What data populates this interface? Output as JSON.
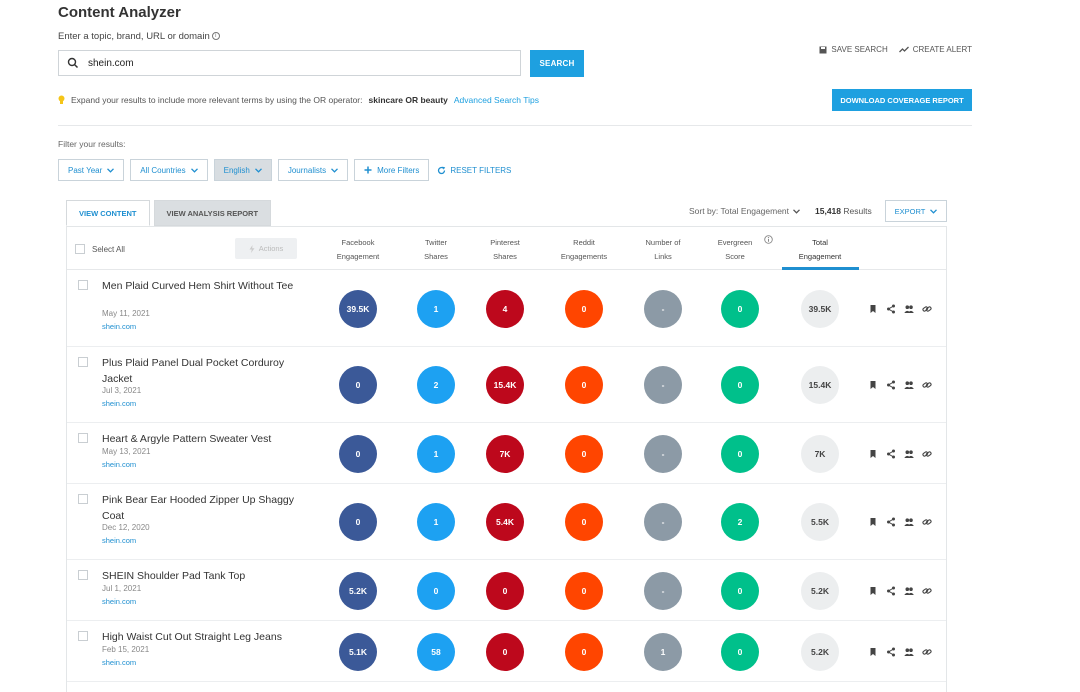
{
  "page_title": "Content Analyzer",
  "search": {
    "label": "Enter a topic, brand, URL or domain",
    "value": "shein.com",
    "button": "SEARCH"
  },
  "top_actions": {
    "save_search": "SAVE SEARCH",
    "create_alert": "CREATE ALERT"
  },
  "tip": {
    "text": "Expand your results to include more relevant terms by using the OR operator:",
    "example": "skincare OR beauty",
    "link": "Advanced Search Tips"
  },
  "download_button": "DOWNLOAD COVERAGE REPORT",
  "filters": {
    "label": "Filter your results:",
    "items": [
      "Past Year",
      "All Countries",
      "English",
      "Journalists"
    ],
    "more": "More Filters",
    "reset": "RESET FILTERS"
  },
  "tabs": [
    "VIEW CONTENT",
    "VIEW ANALYSIS REPORT"
  ],
  "sort": {
    "label": "Sort by: Total Engagement",
    "count": "15,418",
    "results_word": "Results",
    "export": "EXPORT"
  },
  "table": {
    "select_all": "Select All",
    "actions": "Actions",
    "columns": [
      {
        "line1": "Facebook",
        "line2": "Engagement"
      },
      {
        "line1": "Twitter",
        "line2": "Shares"
      },
      {
        "line1": "Pinterest",
        "line2": "Shares"
      },
      {
        "line1": "Reddit",
        "line2": "Engagements"
      },
      {
        "line1": "Number of",
        "line2": "Links"
      },
      {
        "line1": "Evergreen",
        "line2": "Score"
      },
      {
        "line1": "Total",
        "line2": "Engagement"
      }
    ],
    "rows": [
      {
        "title": "Men Plaid Curved Hem Shirt Without Tee",
        "date": "May 11, 2021",
        "domain": "shein.com",
        "facebook": "39.5K",
        "twitter": "1",
        "pinterest": "4",
        "reddit": "0",
        "links": "-",
        "evergreen": "0",
        "total": "39.5K"
      },
      {
        "title": "Plus Plaid Panel Dual Pocket Corduroy Jacket",
        "date": "Jul 3, 2021",
        "domain": "shein.com",
        "facebook": "0",
        "twitter": "2",
        "pinterest": "15.4K",
        "reddit": "0",
        "links": "-",
        "evergreen": "0",
        "total": "15.4K"
      },
      {
        "title": "Heart & Argyle Pattern Sweater Vest",
        "date": "May 13, 2021",
        "domain": "shein.com",
        "facebook": "0",
        "twitter": "1",
        "pinterest": "7K",
        "reddit": "0",
        "links": "-",
        "evergreen": "0",
        "total": "7K"
      },
      {
        "title": "Pink Bear Ear Hooded Zipper Up Shaggy Coat",
        "date": "Dec 12, 2020",
        "domain": "shein.com",
        "facebook": "0",
        "twitter": "1",
        "pinterest": "5.4K",
        "reddit": "0",
        "links": "-",
        "evergreen": "2",
        "total": "5.5K"
      },
      {
        "title": "SHEIN Shoulder Pad Tank Top",
        "date": "Jul 1, 2021",
        "domain": "shein.com",
        "facebook": "5.2K",
        "twitter": "0",
        "pinterest": "0",
        "reddit": "0",
        "links": "-",
        "evergreen": "0",
        "total": "5.2K"
      },
      {
        "title": "High Waist Cut Out Straight Leg Jeans",
        "date": "Feb 15, 2021",
        "domain": "shein.com",
        "facebook": "5.1K",
        "twitter": "58",
        "pinterest": "0",
        "reddit": "0",
        "links": "1",
        "evergreen": "0",
        "total": "5.2K"
      }
    ]
  },
  "colors": {
    "accent": "#1ea0e0",
    "facebook": "#3b5998",
    "twitter": "#1da1f2",
    "pinterest": "#bd081c",
    "reddit": "#ff4500",
    "links": "#8c9aa6",
    "evergreen": "#00c08b",
    "total": "#eceeef"
  }
}
